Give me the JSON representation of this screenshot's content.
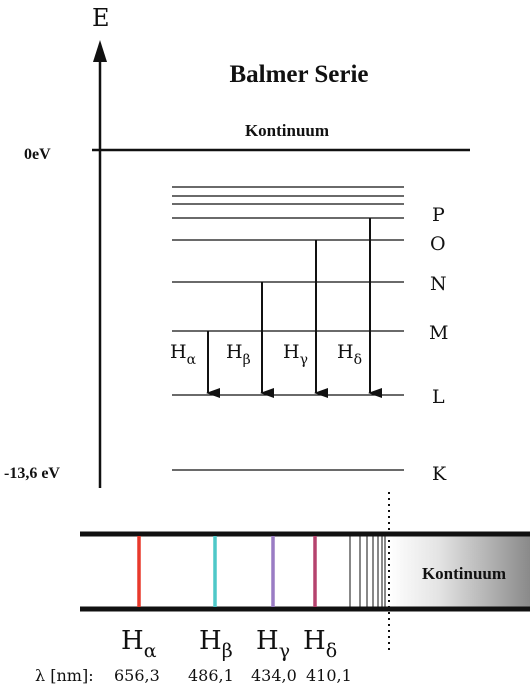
{
  "diagram": {
    "title": "Balmer Serie",
    "axis_label": "E",
    "continuum_label": "Kontinuum",
    "zero_label": "0eV",
    "ground_label": "-13,6 eV",
    "shell_labels": [
      "K",
      "L",
      "M",
      "N",
      "O",
      "P"
    ],
    "transitions": [
      {
        "base": "H",
        "sub": "α"
      },
      {
        "base": "H",
        "sub": "β"
      },
      {
        "base": "H",
        "sub": "γ"
      },
      {
        "base": "H",
        "sub": "δ"
      }
    ]
  },
  "spectrum": {
    "continuum_label": "Kontinuum",
    "wavelength_axis_label": "λ [nm]:",
    "lines": [
      {
        "base": "H",
        "sub": "α",
        "wavelength": "656,3",
        "color": "#e8392b"
      },
      {
        "base": "H",
        "sub": "β",
        "wavelength": "486,1",
        "color": "#4fc8c8"
      },
      {
        "base": "H",
        "sub": "γ",
        "wavelength": "434,0",
        "color": "#9a7cc4"
      },
      {
        "base": "H",
        "sub": "δ",
        "wavelength": "410,1",
        "color": "#b5436e"
      }
    ]
  }
}
